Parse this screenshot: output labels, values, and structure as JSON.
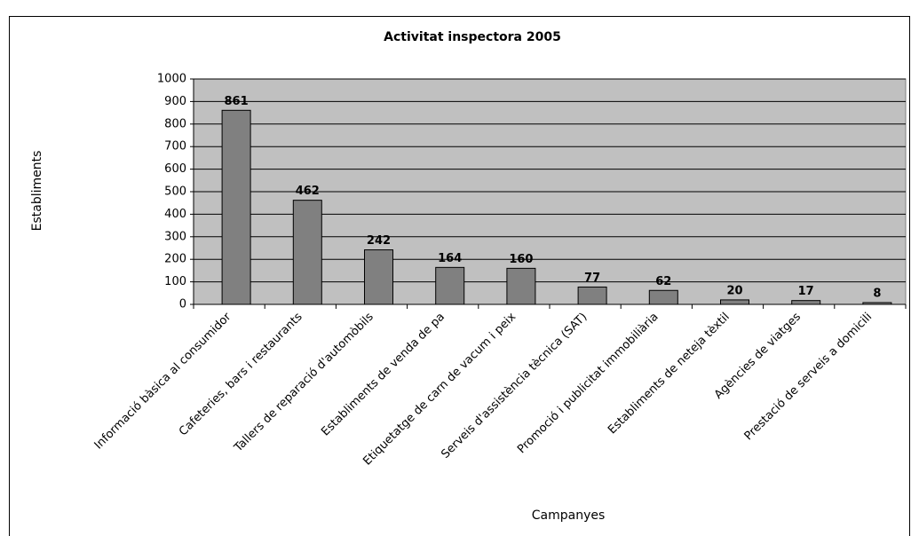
{
  "chart_data": {
    "type": "bar",
    "title": "Activitat inspectora 2005",
    "y_label": "Establiments",
    "x_label": "Campanyes",
    "categories": [
      "Informació bàsica al consumidor",
      "Cafeteries, bars i restaurants",
      "Tallers de reparació d'automòbils",
      "Establiments de venda de pa",
      "Etiquetatge de carn de vacum i peix",
      "Serveis d'assistència tècnica (SAT)",
      "Promoció i publicitat immobiliària",
      "Establiments de neteja tèxtil",
      "Agències de viatges",
      "Prestació de serveis a domicili"
    ],
    "values": [
      861,
      462,
      242,
      164,
      160,
      77,
      62,
      20,
      17,
      8
    ],
    "color": "#808080",
    "plot_background": "#c0c0c0",
    "ylim": [
      0,
      1000
    ],
    "yticks": [
      0,
      100,
      200,
      300,
      400,
      500,
      600,
      700,
      800,
      900,
      1000
    ],
    "grid": true
  }
}
